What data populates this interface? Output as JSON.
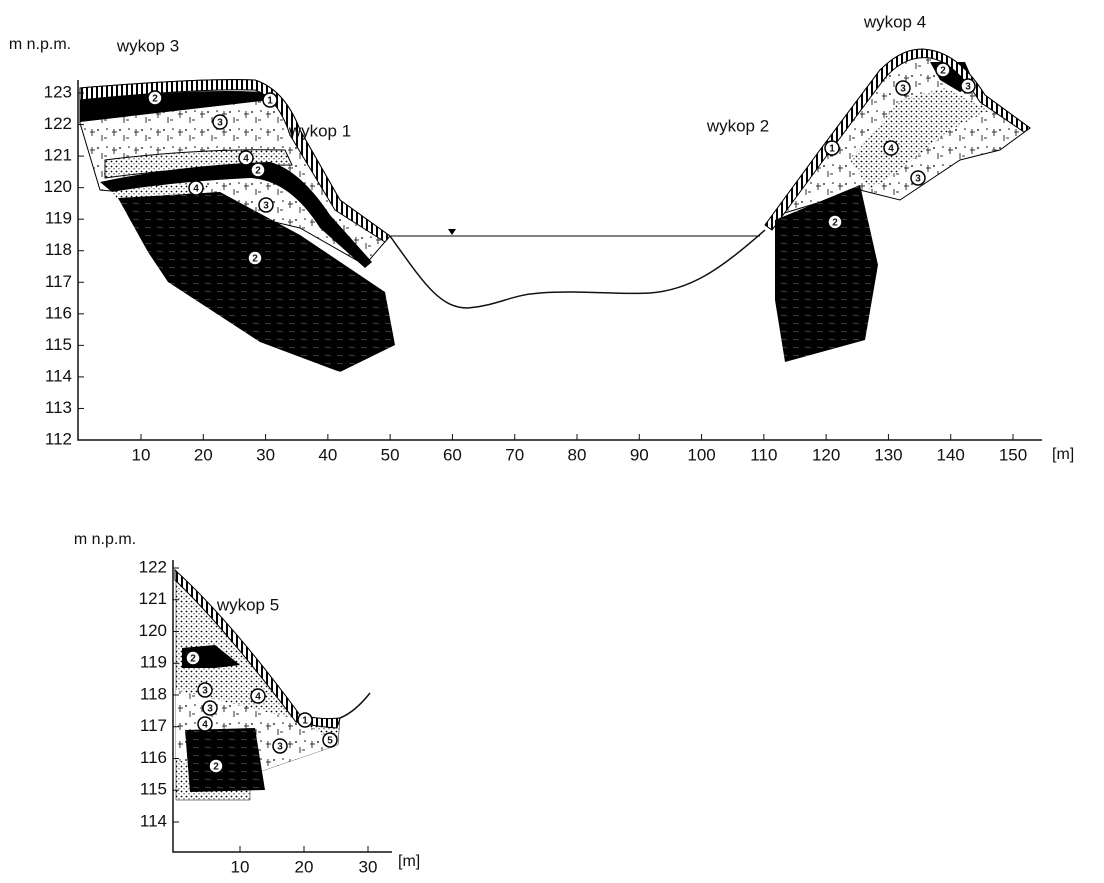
{
  "top": {
    "y_unit": "m n.p.m.",
    "x_unit": "[m]",
    "yticks": [
      112,
      113,
      114,
      115,
      116,
      117,
      118,
      119,
      120,
      121,
      122,
      123
    ],
    "xticks": [
      10,
      20,
      30,
      40,
      50,
      60,
      70,
      80,
      90,
      100,
      110,
      120,
      130,
      140,
      150
    ],
    "labels": [
      "wykop 3",
      "wykop 1",
      "wykop 2",
      "wykop 4"
    ],
    "markers": [
      "2",
      "1",
      "3",
      "4",
      "2",
      "4",
      "3",
      "2",
      "1",
      "4",
      "3",
      "2",
      "3",
      "3",
      "2"
    ]
  },
  "bottom": {
    "y_unit": "m n.p.m.",
    "x_unit": "[m]",
    "yticks": [
      114,
      115,
      116,
      117,
      118,
      119,
      120,
      121,
      122
    ],
    "xticks": [
      10,
      20,
      30
    ],
    "labels": [
      "wykop 5"
    ],
    "markers": [
      "2",
      "3",
      "3",
      "4",
      "1",
      "4",
      "3",
      "5",
      "2"
    ]
  }
}
